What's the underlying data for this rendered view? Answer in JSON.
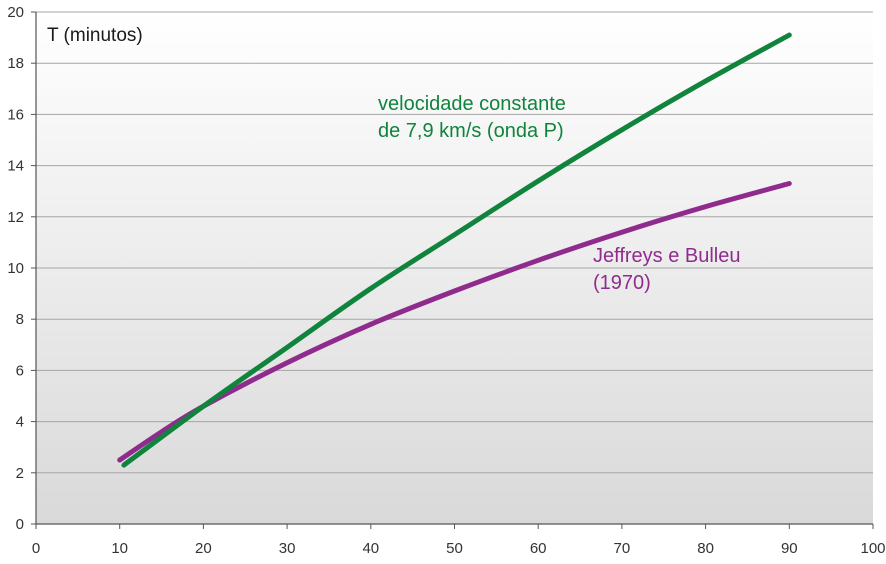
{
  "chart_data": {
    "type": "line",
    "title": "",
    "xlabel": "",
    "ylabel": "T (minutos)",
    "xlim": [
      0,
      100
    ],
    "ylim": [
      0,
      20
    ],
    "xticks": [
      "0",
      "10",
      "20",
      "30",
      "40",
      "50",
      "60",
      "70",
      "80",
      "90",
      "100"
    ],
    "yticks": [
      "0",
      "2",
      "4",
      "6",
      "8",
      "10",
      "12",
      "14",
      "16",
      "18",
      "20"
    ],
    "grid": true,
    "series": [
      {
        "name": "velocidade constante de 7,9 km/s (onda P)",
        "label_lines": [
          "velocidade constante",
          "de 7,9 km/s (onda P)"
        ],
        "color": "#10843c",
        "x": [
          10.5,
          20,
          30,
          40,
          50,
          60,
          70,
          80,
          90
        ],
        "y": [
          2.3,
          4.6,
          6.9,
          9.2,
          11.3,
          13.4,
          15.4,
          17.3,
          19.1
        ]
      },
      {
        "name": "Jeffreys e Bulleu (1970)",
        "label_lines": [
          "Jeffreys e Bulleu",
          "(1970)"
        ],
        "color": "#902b8e",
        "x": [
          10,
          15,
          20,
          30,
          40,
          50,
          60,
          70,
          80,
          90
        ],
        "y": [
          2.5,
          3.6,
          4.6,
          6.3,
          7.8,
          9.1,
          10.3,
          11.4,
          12.4,
          13.3
        ]
      }
    ]
  }
}
